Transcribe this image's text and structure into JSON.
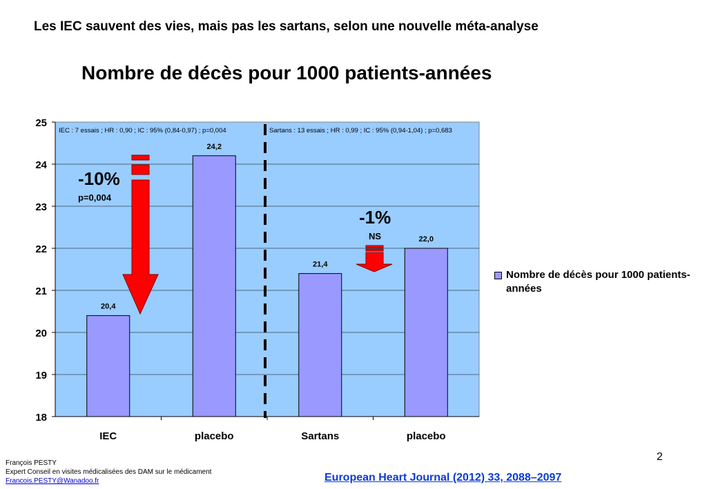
{
  "slide": {
    "title": "Les IEC sauvent des vies, mais pas les sartans, selon une nouvelle méta-analyse",
    "page_number": "2",
    "journal_reference": "European Heart Journal (2012) 33, 2088–2097",
    "author": {
      "name": "François PESTY",
      "role": "Expert Conseil en visites médicalisées des DAM sur le médicament",
      "email": "Francois.PESTY@Wanadoo.fr"
    }
  },
  "annotations": {
    "iec_stats": "IEC : 7 essais ; HR : 0,90 ; IC : 95% (0,84-0,97) ; p=0,004",
    "sartans_stats": "Sartans : 13 essais ; HR : 0,99 ; IC : 95% (0,94-1,04) ; p=0,683",
    "iec_reduction": "-10%",
    "iec_p_value": "p=0,004",
    "sartans_reduction": "-1%",
    "sartans_significance": "NS"
  },
  "colors": {
    "plot_background": "#99ccff",
    "bar_fill": "#9999ff",
    "arrow_fill": "#ff0000",
    "journal_link": "#0b3bd6"
  },
  "chart_data": {
    "type": "bar",
    "title": "Nombre de décès pour 1000 patients-années",
    "categories": [
      "IEC",
      "placebo",
      "Sartans",
      "placebo"
    ],
    "series": [
      {
        "name": "Nombre de décès pour 1000 patients-années",
        "values": [
          20.4,
          24.2,
          21.4,
          22.0
        ],
        "value_labels": [
          "20,4",
          "24,2",
          "21,4",
          "22,0"
        ]
      }
    ],
    "ylim": [
      18,
      25
    ],
    "yticks": [
      "18",
      "19",
      "20",
      "21",
      "22",
      "23",
      "24",
      "25"
    ],
    "xlabel": "",
    "ylabel": "",
    "grid": true,
    "legend_position": "right"
  }
}
